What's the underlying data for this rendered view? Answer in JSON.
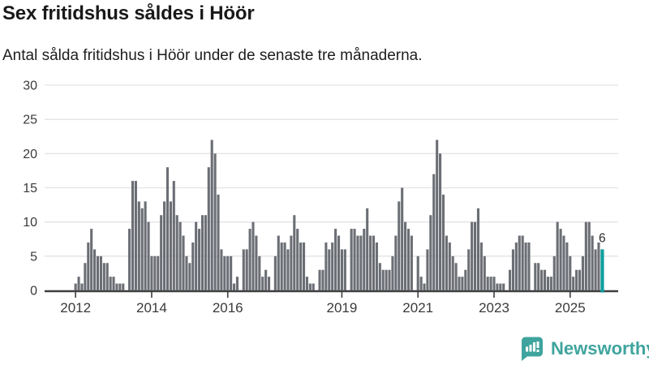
{
  "header": {
    "title": "Sex fritidshus såldes i Höör",
    "subtitle": "Antal sålda fritidshus i Höör under de senaste tre månaderna."
  },
  "chart_data": {
    "type": "bar",
    "title": "Sex fritidshus såldes i Höör",
    "subtitle": "Antal sålda fritidshus i Höör under de senaste tre månaderna.",
    "frequency": "monthly",
    "x_start": "2012-01",
    "x_end": "2025-11",
    "ylim": [
      0,
      30
    ],
    "y_ticks": [
      0,
      5,
      10,
      15,
      20,
      25,
      30
    ],
    "grid": true,
    "legend": "none",
    "x_ticks": [
      {
        "label": "2012",
        "month_index": 0
      },
      {
        "label": "2014",
        "month_index": 24
      },
      {
        "label": "2016",
        "month_index": 48
      },
      {
        "label": "2019",
        "month_index": 84
      },
      {
        "label": "2021",
        "month_index": 108
      },
      {
        "label": "2023",
        "month_index": 132
      },
      {
        "label": "2025",
        "month_index": 156
      }
    ],
    "values": [
      1,
      2,
      1,
      4,
      7,
      9,
      6,
      5,
      5,
      4,
      4,
      2,
      2,
      1,
      1,
      1,
      0,
      9,
      16,
      16,
      13,
      12,
      13,
      10,
      5,
      5,
      5,
      11,
      13,
      18,
      13,
      16,
      11,
      10,
      8,
      5,
      4,
      7,
      10,
      9,
      11,
      11,
      18,
      22,
      20,
      14,
      6,
      5,
      5,
      5,
      1,
      2,
      0,
      6,
      6,
      9,
      10,
      8,
      5,
      2,
      3,
      2,
      0,
      5,
      8,
      7,
      7,
      6,
      8,
      11,
      9,
      7,
      7,
      2,
      1,
      1,
      0,
      3,
      3,
      7,
      6,
      7,
      9,
      8,
      6,
      6,
      0,
      9,
      9,
      8,
      8,
      9,
      12,
      8,
      8,
      7,
      4,
      3,
      3,
      3,
      5,
      8,
      13,
      15,
      10,
      9,
      8,
      0,
      5,
      2,
      1,
      6,
      11,
      17,
      22,
      20,
      14,
      8,
      7,
      5,
      4,
      2,
      2,
      3,
      6,
      10,
      10,
      12,
      7,
      5,
      2,
      2,
      2,
      1,
      1,
      1,
      0,
      3,
      6,
      7,
      8,
      8,
      7,
      7,
      0,
      4,
      4,
      3,
      3,
      2,
      2,
      5,
      10,
      9,
      8,
      7,
      5,
      2,
      3,
      3,
      5,
      10,
      10,
      8,
      6,
      7,
      6
    ],
    "highlight_last_value": 6,
    "highlight_label": "6",
    "bar_color": "#6b6e74",
    "highlight_color": "#0f9e9e",
    "axis_color": "#3f3f3f",
    "gridline_color": "#e3e3e6",
    "tick_label_color": "#3a3a3a",
    "annotation_color": "#2b2b2b"
  },
  "footer": {
    "brand_label": "Newsworthy",
    "brand_color": "#3fa49e"
  }
}
